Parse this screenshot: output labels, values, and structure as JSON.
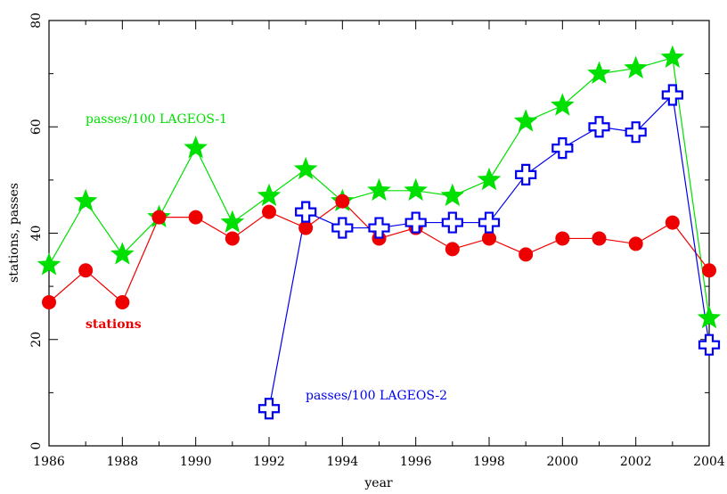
{
  "chart_data": {
    "type": "line",
    "xlabel": "year",
    "ylabel": "stations, passes",
    "xlim": [
      1986,
      2004
    ],
    "ylim": [
      0,
      80
    ],
    "x_ticks": [
      1986,
      1988,
      1990,
      1992,
      1994,
      1996,
      1998,
      2000,
      2002,
      2004
    ],
    "y_ticks": [
      0,
      20,
      40,
      60,
      80
    ],
    "grid": false,
    "series": [
      {
        "name": "passes/100 LAGEOS-1",
        "color": "#00e000",
        "marker": "filled-star",
        "x": [
          1986,
          1987,
          1988,
          1989,
          1990,
          1991,
          1992,
          1993,
          1994,
          1995,
          1996,
          1997,
          1998,
          1999,
          2000,
          2001,
          2002,
          2003,
          2004
        ],
        "y": [
          34,
          46,
          36,
          43,
          56,
          42,
          47,
          52,
          46,
          48,
          48,
          47,
          50,
          61,
          64,
          70,
          71,
          73,
          24
        ]
      },
      {
        "name": "stations",
        "color": "#ee0000",
        "marker": "filled-circle",
        "x": [
          1986,
          1987,
          1988,
          1989,
          1990,
          1991,
          1992,
          1993,
          1994,
          1995,
          1996,
          1997,
          1998,
          1999,
          2000,
          2001,
          2002,
          2003,
          2004
        ],
        "y": [
          27,
          33,
          27,
          43,
          43,
          39,
          44,
          41,
          46,
          39,
          41,
          37,
          39,
          36,
          39,
          39,
          38,
          42,
          33
        ]
      },
      {
        "name": "passes/100 LAGEOS-2",
        "color": "#0000ee",
        "marker": "open-cross",
        "x": [
          1992,
          1993,
          1994,
          1995,
          1996,
          1997,
          1998,
          1999,
          2000,
          2001,
          2002,
          2003,
          2004
        ],
        "y": [
          7,
          44,
          41,
          41,
          42,
          42,
          42,
          51,
          56,
          60,
          59,
          66,
          19
        ]
      }
    ],
    "annotations": [
      {
        "text": "passes/100 LAGEOS-1",
        "color": "#00e000"
      },
      {
        "text": "stations",
        "color": "#ee0000"
      },
      {
        "text": "passes/100 LAGEOS-2",
        "color": "#0000ee"
      }
    ]
  }
}
